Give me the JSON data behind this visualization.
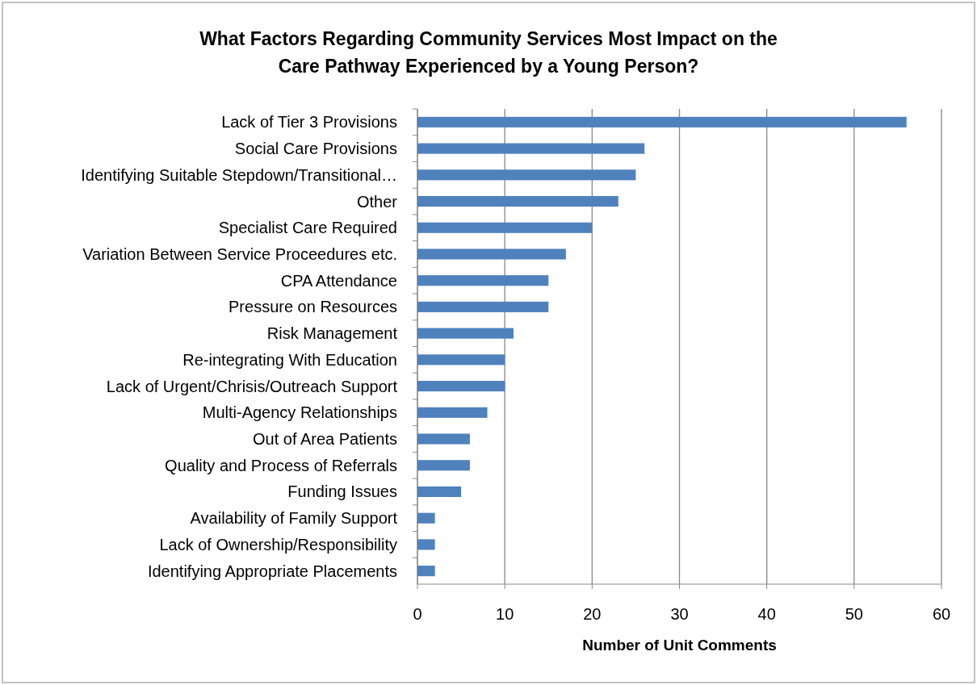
{
  "chart_data": {
    "type": "bar",
    "orientation": "horizontal",
    "title": "What Factors Regarding Community Services Most Impact on the Care Pathway Experienced by a Young Person?",
    "xlabel": "Number of Unit Comments",
    "categories": [
      "Lack of Tier 3 Provisions",
      "Social Care Provisions",
      "Identifying Suitable Stepdown/Transitional…",
      "Other",
      "Specialist Care Required",
      "Variation Between Service Proceedures etc.",
      "CPA Attendance",
      "Pressure on Resources",
      "Risk Management",
      "Re-integrating With Education",
      "Lack of Urgent/Chrisis/Outreach Support",
      "Multi-Agency Relationships",
      "Out of Area Patients",
      "Quality and Process of Referrals",
      "Funding Issues",
      "Availability of Family Support",
      "Lack of Ownership/Responsibility",
      "Identifying Appropriate Placements"
    ],
    "values": [
      56,
      26,
      25,
      23,
      20,
      17,
      15,
      15,
      11,
      10,
      10,
      8,
      6,
      6,
      5,
      2,
      2,
      2
    ],
    "color": "#4f81bd",
    "xlim": [
      0,
      60
    ],
    "xticks": [
      0,
      10,
      20,
      30,
      40,
      50,
      60
    ],
    "grid": "x"
  }
}
